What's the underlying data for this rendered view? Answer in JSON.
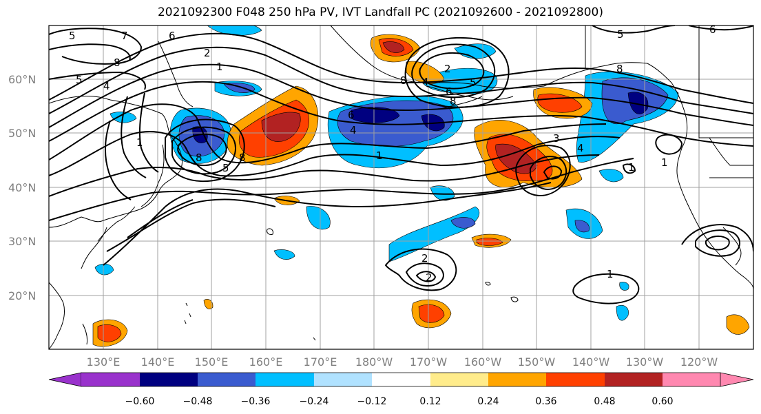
{
  "title": "2021092300 F048 250 hPa PV, IVT Landfall PC (2021092600 - 2021092800)",
  "map": {
    "projection": "PlateCarree",
    "lon_range": [
      121,
      251
    ],
    "lat_range": [
      10,
      70
    ],
    "lat_labels": [
      "20°N",
      "30°N",
      "40°N",
      "50°N",
      "60°N"
    ],
    "lon_labels": [
      "130°E",
      "140°E",
      "150°E",
      "160°E",
      "170°E",
      "180°W",
      "170°W",
      "160°W",
      "150°W",
      "140°W",
      "130°W",
      "120°W"
    ],
    "contour_labels": [
      "1",
      "2",
      "3",
      "4",
      "5",
      "6",
      "7",
      "8",
      "8",
      "1",
      "2",
      "4",
      "5",
      "6",
      "8",
      "1",
      "3",
      "5",
      "6",
      "1",
      "2",
      "4",
      "1",
      "1"
    ],
    "colors": {
      "neg_060": "#9932cc",
      "neg_048": "#000080",
      "neg_036": "#3a5bcf",
      "neg_024": "#00bfff",
      "neg_012": "#b0e2ff",
      "zero": "#ffffff",
      "pos_012": "#ffec8b",
      "pos_024": "#ffa500",
      "pos_036": "#ff4000",
      "pos_048": "#b22222",
      "pos_060": "#ff88b0"
    }
  },
  "colorbar": {
    "ticks": [
      "−0.60",
      "−0.48",
      "−0.36",
      "−0.24",
      "−0.12",
      "0.12",
      "0.24",
      "0.36",
      "0.48",
      "0.60"
    ],
    "bins": [
      "#9932cc",
      "#000080",
      "#3a5bcf",
      "#00bfff",
      "#b0e2ff",
      "#ffffff",
      "#ffec8b",
      "#ffa500",
      "#ff4000",
      "#b22222",
      "#ff88b0"
    ]
  }
}
